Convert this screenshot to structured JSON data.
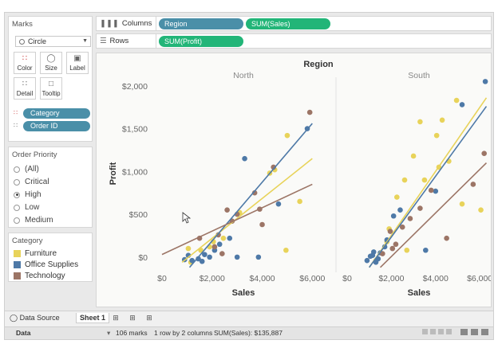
{
  "marks_card": {
    "title": "Marks",
    "mark_type": "Circle",
    "buttons": [
      {
        "label": "Color",
        "icon": "color-dots-icon"
      },
      {
        "label": "Size",
        "icon": "size-icon"
      },
      {
        "label": "Label",
        "icon": "label-icon"
      },
      {
        "label": "Detail",
        "icon": "detail-dots-icon"
      },
      {
        "label": "Tooltip",
        "icon": "tooltip-icon"
      }
    ],
    "pills": [
      {
        "label": "Category",
        "icon": "color-dots-icon"
      },
      {
        "label": "Order ID",
        "icon": "detail-dots-icon"
      }
    ]
  },
  "filter_card": {
    "title": "Order Priority",
    "options": [
      "(All)",
      "Critical",
      "High",
      "Low",
      "Medium"
    ],
    "selected": "High"
  },
  "legend_card": {
    "title": "Category",
    "items": [
      {
        "label": "Furniture",
        "color": "#e8d35a"
      },
      {
        "label": "Office Supplies",
        "color": "#4e79a7"
      },
      {
        "label": "Technology",
        "color": "#9c7566"
      }
    ]
  },
  "shelves": {
    "columns_label": "Columns",
    "columns_pills": [
      "Region",
      "SUM(Sales)"
    ],
    "rows_label": "Rows",
    "rows_pills": [
      "SUM(Profit)"
    ]
  },
  "tabs": {
    "data_source": "Data Source",
    "sheet": "Sheet 1"
  },
  "status": {
    "data_label": "Data",
    "marks": "106 marks",
    "dims": "1 row by 2 columns",
    "sum": "SUM(Sales): $135,887"
  },
  "chart_data": {
    "type": "scatter",
    "title": "Region",
    "panels": [
      "North",
      "South"
    ],
    "xlabel": "Sales",
    "ylabel": "Profit",
    "x_ticks": [
      "$0",
      "$2,000",
      "$4,000",
      "$6,000"
    ],
    "y_ticks": [
      "$0",
      "$500",
      "$1,000",
      "$1,500",
      "$2,000"
    ],
    "xlim": [
      0,
      6500
    ],
    "ylim": [
      -150,
      2100
    ],
    "colors": {
      "Furniture": "#e8d35a",
      "Office Supplies": "#4e79a7",
      "Technology": "#9c7566"
    },
    "series": [
      {
        "name": "Furniture",
        "panel": "North",
        "points": [
          [
            1050,
            100
          ],
          [
            1150,
            -60
          ],
          [
            1550,
            80
          ],
          [
            1900,
            120
          ],
          [
            2050,
            180
          ],
          [
            2450,
            220
          ],
          [
            3100,
            520
          ],
          [
            4300,
            980
          ],
          [
            4500,
            1020
          ],
          [
            5000,
            1420
          ],
          [
            5500,
            650
          ],
          [
            4950,
            80
          ]
        ],
        "trend": [
          [
            800,
            -60
          ],
          [
            6000,
            1150
          ]
        ]
      },
      {
        "name": "Office Supplies",
        "panel": "North",
        "points": [
          [
            900,
            -30
          ],
          [
            1050,
            20
          ],
          [
            1200,
            -40
          ],
          [
            1450,
            -20
          ],
          [
            1700,
            30
          ],
          [
            1900,
            0
          ],
          [
            2100,
            80
          ],
          [
            2300,
            150
          ],
          [
            2700,
            220
          ],
          [
            3000,
            0
          ],
          [
            3300,
            1150
          ],
          [
            3850,
            0
          ],
          [
            4650,
            620
          ],
          [
            5800,
            1500
          ],
          [
            1600,
            -50
          ]
        ],
        "trend": [
          [
            1100,
            -120
          ],
          [
            6000,
            1560
          ]
        ]
      },
      {
        "name": "Technology",
        "panel": "North",
        "points": [
          [
            1500,
            220
          ],
          [
            2250,
            260
          ],
          [
            2400,
            40
          ],
          [
            2800,
            420
          ],
          [
            3700,
            750
          ],
          [
            3900,
            560
          ],
          [
            4000,
            380
          ],
          [
            4450,
            1050
          ],
          [
            5900,
            1690
          ],
          [
            2100,
            120
          ],
          [
            2600,
            550
          ],
          [
            3000,
            500
          ]
        ],
        "trend": [
          [
            0,
            30
          ],
          [
            6000,
            850
          ]
        ]
      },
      {
        "name": "Furniture",
        "panel": "South",
        "points": [
          [
            1300,
            -40
          ],
          [
            1800,
            180
          ],
          [
            1900,
            330
          ],
          [
            2250,
            700
          ],
          [
            2600,
            900
          ],
          [
            3000,
            1180
          ],
          [
            3300,
            1580
          ],
          [
            4050,
            1420
          ],
          [
            4300,
            1600
          ],
          [
            4600,
            1120
          ],
          [
            4950,
            1830
          ],
          [
            6050,
            550
          ],
          [
            5200,
            620
          ],
          [
            4150,
            1050
          ],
          [
            3500,
            900
          ],
          [
            2700,
            80
          ]
        ],
        "trend": [
          [
            1000,
            -120
          ],
          [
            6300,
            1860
          ]
        ]
      },
      {
        "name": "Office Supplies",
        "panel": "South",
        "points": [
          [
            900,
            -40
          ],
          [
            1050,
            10
          ],
          [
            1200,
            60
          ],
          [
            1400,
            -20
          ],
          [
            1500,
            50
          ],
          [
            1700,
            120
          ],
          [
            1800,
            200
          ],
          [
            2100,
            480
          ],
          [
            2400,
            550
          ],
          [
            3550,
            80
          ],
          [
            4000,
            770
          ],
          [
            5200,
            1780
          ],
          [
            6250,
            2050
          ],
          [
            1300,
            -60
          ],
          [
            1150,
            20
          ]
        ],
        "trend": [
          [
            1000,
            -120
          ],
          [
            6300,
            1760
          ]
        ]
      },
      {
        "name": "Technology",
        "panel": "South",
        "points": [
          [
            1600,
            40
          ],
          [
            2050,
            100
          ],
          [
            2200,
            150
          ],
          [
            2500,
            350
          ],
          [
            2850,
            450
          ],
          [
            3300,
            570
          ],
          [
            4500,
            220
          ],
          [
            5700,
            850
          ],
          [
            6200,
            1210
          ],
          [
            1950,
            300
          ],
          [
            3800,
            780
          ]
        ],
        "trend": [
          [
            1500,
            -120
          ],
          [
            6300,
            1100
          ]
        ]
      }
    ]
  }
}
